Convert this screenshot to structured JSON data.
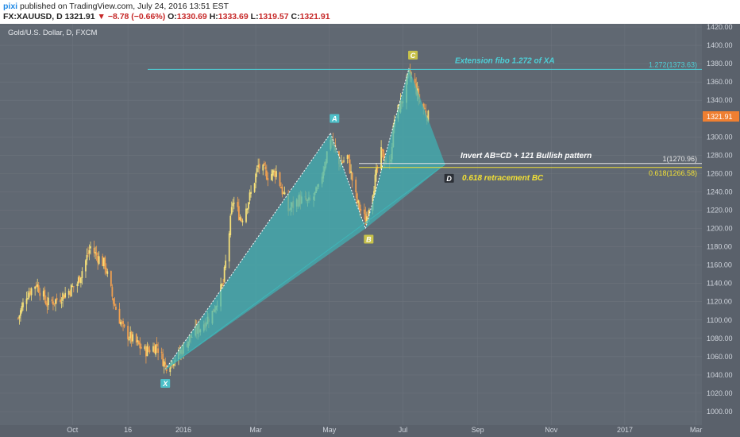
{
  "header": {
    "brand": "pixi",
    "published": "published on TradingView.com, July 24, 2016 13:51 EST",
    "symbol": "FX:XAUUSD, D",
    "last": "1321.91",
    "change": "−8.78 (−0.66%)",
    "open_label": "O:",
    "open": "1330.69",
    "high_label": "H:",
    "high": "1333.69",
    "low_label": "L:",
    "low": "1319.57",
    "close_label": "C:",
    "close": "1321.91"
  },
  "colors": {
    "background": "#606872",
    "up": "#f5e07a",
    "down": "#f0a050",
    "pattern_fill": "#3fb5b8",
    "fib_cyan": "#4dd0d8",
    "fib_white": "#e6e6e6",
    "fib_yellow": "#f2e035",
    "label_bg_teal": "#4dbfc8",
    "label_bg_olive": "#c8c24a",
    "label_bg_dark": "#2b2f36",
    "price_tag": "#ef7f31"
  },
  "chart_data": {
    "type": "candlestick",
    "title": "Gold/U.S. Dollar, D, FXCM",
    "ylim": [
      990,
      1430
    ],
    "y_ticks": [
      "1000.00",
      "1020.00",
      "1040.00",
      "1060.00",
      "1080.00",
      "1100.00",
      "1120.00",
      "1140.00",
      "1160.00",
      "1180.00",
      "1200.00",
      "1220.00",
      "1240.00",
      "1260.00",
      "1280.00",
      "1300.00",
      "1320.00",
      "1340.00",
      "1360.00",
      "1380.00",
      "1400.00",
      "1420.00"
    ],
    "x_ticks": [
      "Oct",
      "16",
      "2016",
      "Mar",
      "May",
      "Jul",
      "Sep",
      "Nov",
      "2017",
      "Mar"
    ],
    "last_price_tag": "1321.91",
    "pattern_points": [
      {
        "name": "X",
        "date": "2015-12-17",
        "price": 1046
      },
      {
        "name": "A",
        "date": "2016-05-02",
        "price": 1304
      },
      {
        "name": "B",
        "date": "2016-05-31",
        "price": 1200
      },
      {
        "name": "C",
        "date": "2016-07-06",
        "price": 1375
      },
      {
        "name": "D",
        "date": "2016-08-05",
        "price": 1270
      }
    ],
    "levels": [
      {
        "label": "1.272(1373.63)",
        "price": 1373.63
      },
      {
        "label": "1(1270.96)",
        "price": 1270.96
      },
      {
        "label": "0.618(1266.58)",
        "price": 1266.58
      }
    ],
    "annotations": [
      "Extension fibo 1.272 of XA",
      "Invert AB=CD + 121 Bullish pattern",
      "0.618 retracement BC"
    ],
    "price_path": [
      {
        "date": "2015-08-17",
        "price": 1102
      },
      {
        "date": "2015-08-24",
        "price": 1128
      },
      {
        "date": "2015-09-01",
        "price": 1140
      },
      {
        "date": "2015-09-10",
        "price": 1118
      },
      {
        "date": "2015-09-18",
        "price": 1122
      },
      {
        "date": "2015-09-28",
        "price": 1132
      },
      {
        "date": "2015-10-05",
        "price": 1140
      },
      {
        "date": "2015-10-12",
        "price": 1165
      },
      {
        "date": "2015-10-16",
        "price": 1180
      },
      {
        "date": "2015-10-20",
        "price": 1172
      },
      {
        "date": "2015-10-28",
        "price": 1160
      },
      {
        "date": "2015-11-04",
        "price": 1120
      },
      {
        "date": "2015-11-12",
        "price": 1090
      },
      {
        "date": "2015-11-20",
        "price": 1078
      },
      {
        "date": "2015-11-30",
        "price": 1066
      },
      {
        "date": "2015-12-10",
        "price": 1072
      },
      {
        "date": "2015-12-17",
        "price": 1050
      },
      {
        "date": "2015-12-28",
        "price": 1062
      },
      {
        "date": "2016-01-06",
        "price": 1080
      },
      {
        "date": "2016-01-15",
        "price": 1092
      },
      {
        "date": "2016-01-25",
        "price": 1108
      },
      {
        "date": "2016-02-03",
        "price": 1140
      },
      {
        "date": "2016-02-11",
        "price": 1230
      },
      {
        "date": "2016-02-18",
        "price": 1210
      },
      {
        "date": "2016-02-26",
        "price": 1238
      },
      {
        "date": "2016-03-03",
        "price": 1268
      },
      {
        "date": "2016-03-11",
        "price": 1258
      },
      {
        "date": "2016-03-18",
        "price": 1262
      },
      {
        "date": "2016-03-28",
        "price": 1220
      },
      {
        "date": "2016-04-06",
        "price": 1232
      },
      {
        "date": "2016-04-14",
        "price": 1228
      },
      {
        "date": "2016-04-22",
        "price": 1242
      },
      {
        "date": "2016-05-02",
        "price": 1300
      },
      {
        "date": "2016-05-09",
        "price": 1270
      },
      {
        "date": "2016-05-16",
        "price": 1278
      },
      {
        "date": "2016-05-24",
        "price": 1228
      },
      {
        "date": "2016-05-31",
        "price": 1208
      },
      {
        "date": "2016-06-06",
        "price": 1242
      },
      {
        "date": "2016-06-13",
        "price": 1282
      },
      {
        "date": "2016-06-20",
        "price": 1268
      },
      {
        "date": "2016-06-24",
        "price": 1320
      },
      {
        "date": "2016-07-01",
        "price": 1342
      },
      {
        "date": "2016-07-06",
        "price": 1368
      },
      {
        "date": "2016-07-11",
        "price": 1356
      },
      {
        "date": "2016-07-15",
        "price": 1338
      },
      {
        "date": "2016-07-22",
        "price": 1322
      }
    ]
  }
}
